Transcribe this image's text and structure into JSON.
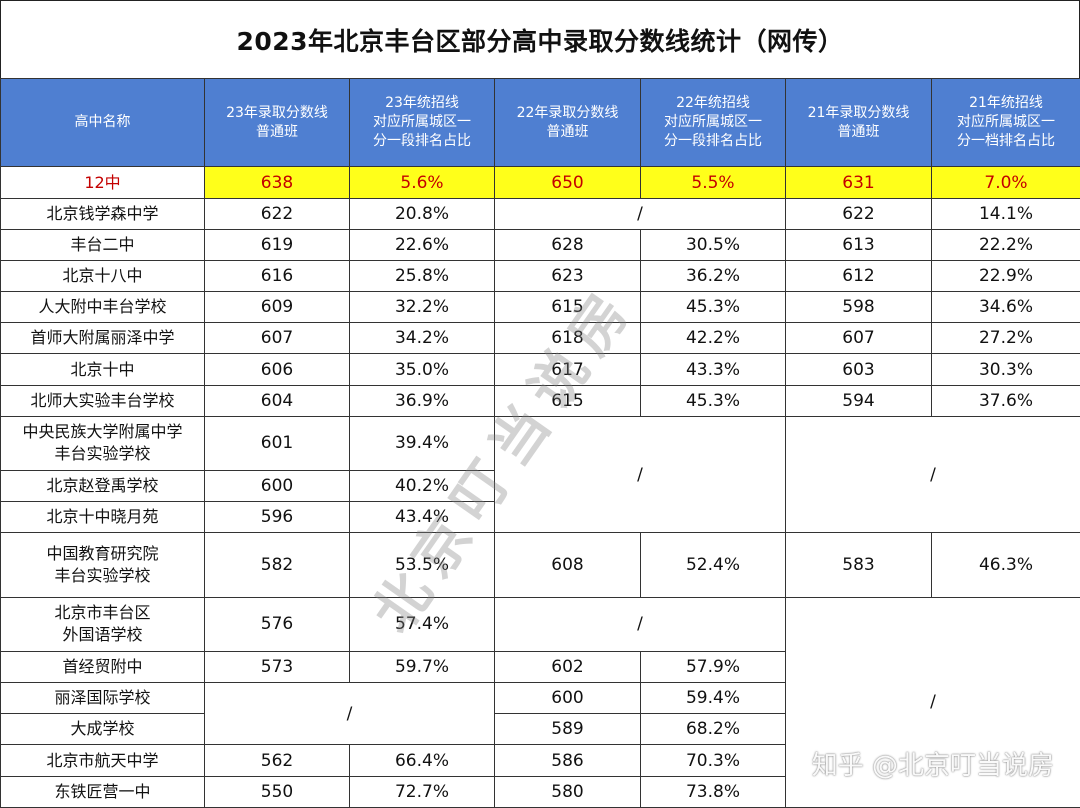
{
  "title": "2023年北京丰台区部分高中录取分数线统计（网传）",
  "headers": [
    "高中名称",
    "23年录取分数线\n普通班",
    "23年统招线\n对应所属城区一\n分一段排名占比",
    "22年录取分数线\n普通班",
    "22年统招线\n对应所属城区一\n分一段排名占比",
    "21年录取分数线\n普通班",
    "21年统招线\n对应所属城区一\n分一档排名占比"
  ],
  "rows": {
    "r0": {
      "name": "12中",
      "s23": "638",
      "p23": "5.6%",
      "s22": "650",
      "p22": "5.5%",
      "s21": "631",
      "p21": "7.0%"
    },
    "r1": {
      "name": "北京钱学森中学",
      "s23": "622",
      "p23": "20.8%",
      "na22": "/",
      "s21": "622",
      "p21": "14.1%"
    },
    "r2": {
      "name": "丰台二中",
      "s23": "619",
      "p23": "22.6%",
      "s22": "628",
      "p22": "30.5%",
      "s21": "613",
      "p21": "22.2%"
    },
    "r3": {
      "name": "北京十八中",
      "s23": "616",
      "p23": "25.8%",
      "s22": "623",
      "p22": "36.2%",
      "s21": "612",
      "p21": "22.9%"
    },
    "r4": {
      "name": "人大附中丰台学校",
      "s23": "609",
      "p23": "32.2%",
      "s22": "615",
      "p22": "45.3%",
      "s21": "598",
      "p21": "34.6%"
    },
    "r5": {
      "name": "首师大附属丽泽中学",
      "s23": "607",
      "p23": "34.2%",
      "s22": "618",
      "p22": "42.2%",
      "s21": "607",
      "p21": "27.2%"
    },
    "r6": {
      "name": "北京十中",
      "s23": "606",
      "p23": "35.0%",
      "s22": "617",
      "p22": "43.3%",
      "s21": "603",
      "p21": "30.3%"
    },
    "r7": {
      "name": "北师大实验丰台学校",
      "s23": "604",
      "p23": "36.9%",
      "s22": "615",
      "p22": "45.3%",
      "s21": "594",
      "p21": "37.6%"
    },
    "r8": {
      "name": "中央民族大学附属中学\n丰台实验学校",
      "s23": "601",
      "p23": "39.4%",
      "na22": "/",
      "na21": "/"
    },
    "r9": {
      "name": "北京赵登禹学校",
      "s23": "600",
      "p23": "40.2%"
    },
    "r10": {
      "name": "北京十中晓月苑",
      "s23": "596",
      "p23": "43.4%"
    },
    "r11": {
      "name": "中国教育研究院\n丰台实验学校",
      "s23": "582",
      "p23": "53.5%",
      "s22": "608",
      "p22": "52.4%",
      "s21": "583",
      "p21": "46.3%"
    },
    "r12": {
      "name": "北京市丰台区\n外国语学校",
      "s23": "576",
      "p23": "57.4%",
      "na22": "/",
      "na21": "/"
    },
    "r13": {
      "name": "首经贸附中",
      "s23": "573",
      "p23": "59.7%",
      "s22": "602",
      "p22": "57.9%"
    },
    "r14": {
      "name": "丽泽国际学校",
      "na23": "/",
      "s22": "600",
      "p22": "59.4%"
    },
    "r15": {
      "name": "大成学校",
      "s22": "589",
      "p22": "68.2%"
    },
    "r16": {
      "name": "北京市航天中学",
      "s23": "562",
      "p23": "66.4%",
      "s22": "586",
      "p22": "70.3%"
    },
    "r17": {
      "name": "东铁匠营一中",
      "s23": "550",
      "p23": "72.7%",
      "s22": "580",
      "p22": "73.8%"
    }
  },
  "watermark": "北京叮当说房",
  "footer_watermark": "知乎 @北京叮当说房",
  "colors": {
    "header_bg": "#4f7fd1",
    "highlight_bg": "#ffff1a",
    "highlight_text": "#c40000"
  }
}
